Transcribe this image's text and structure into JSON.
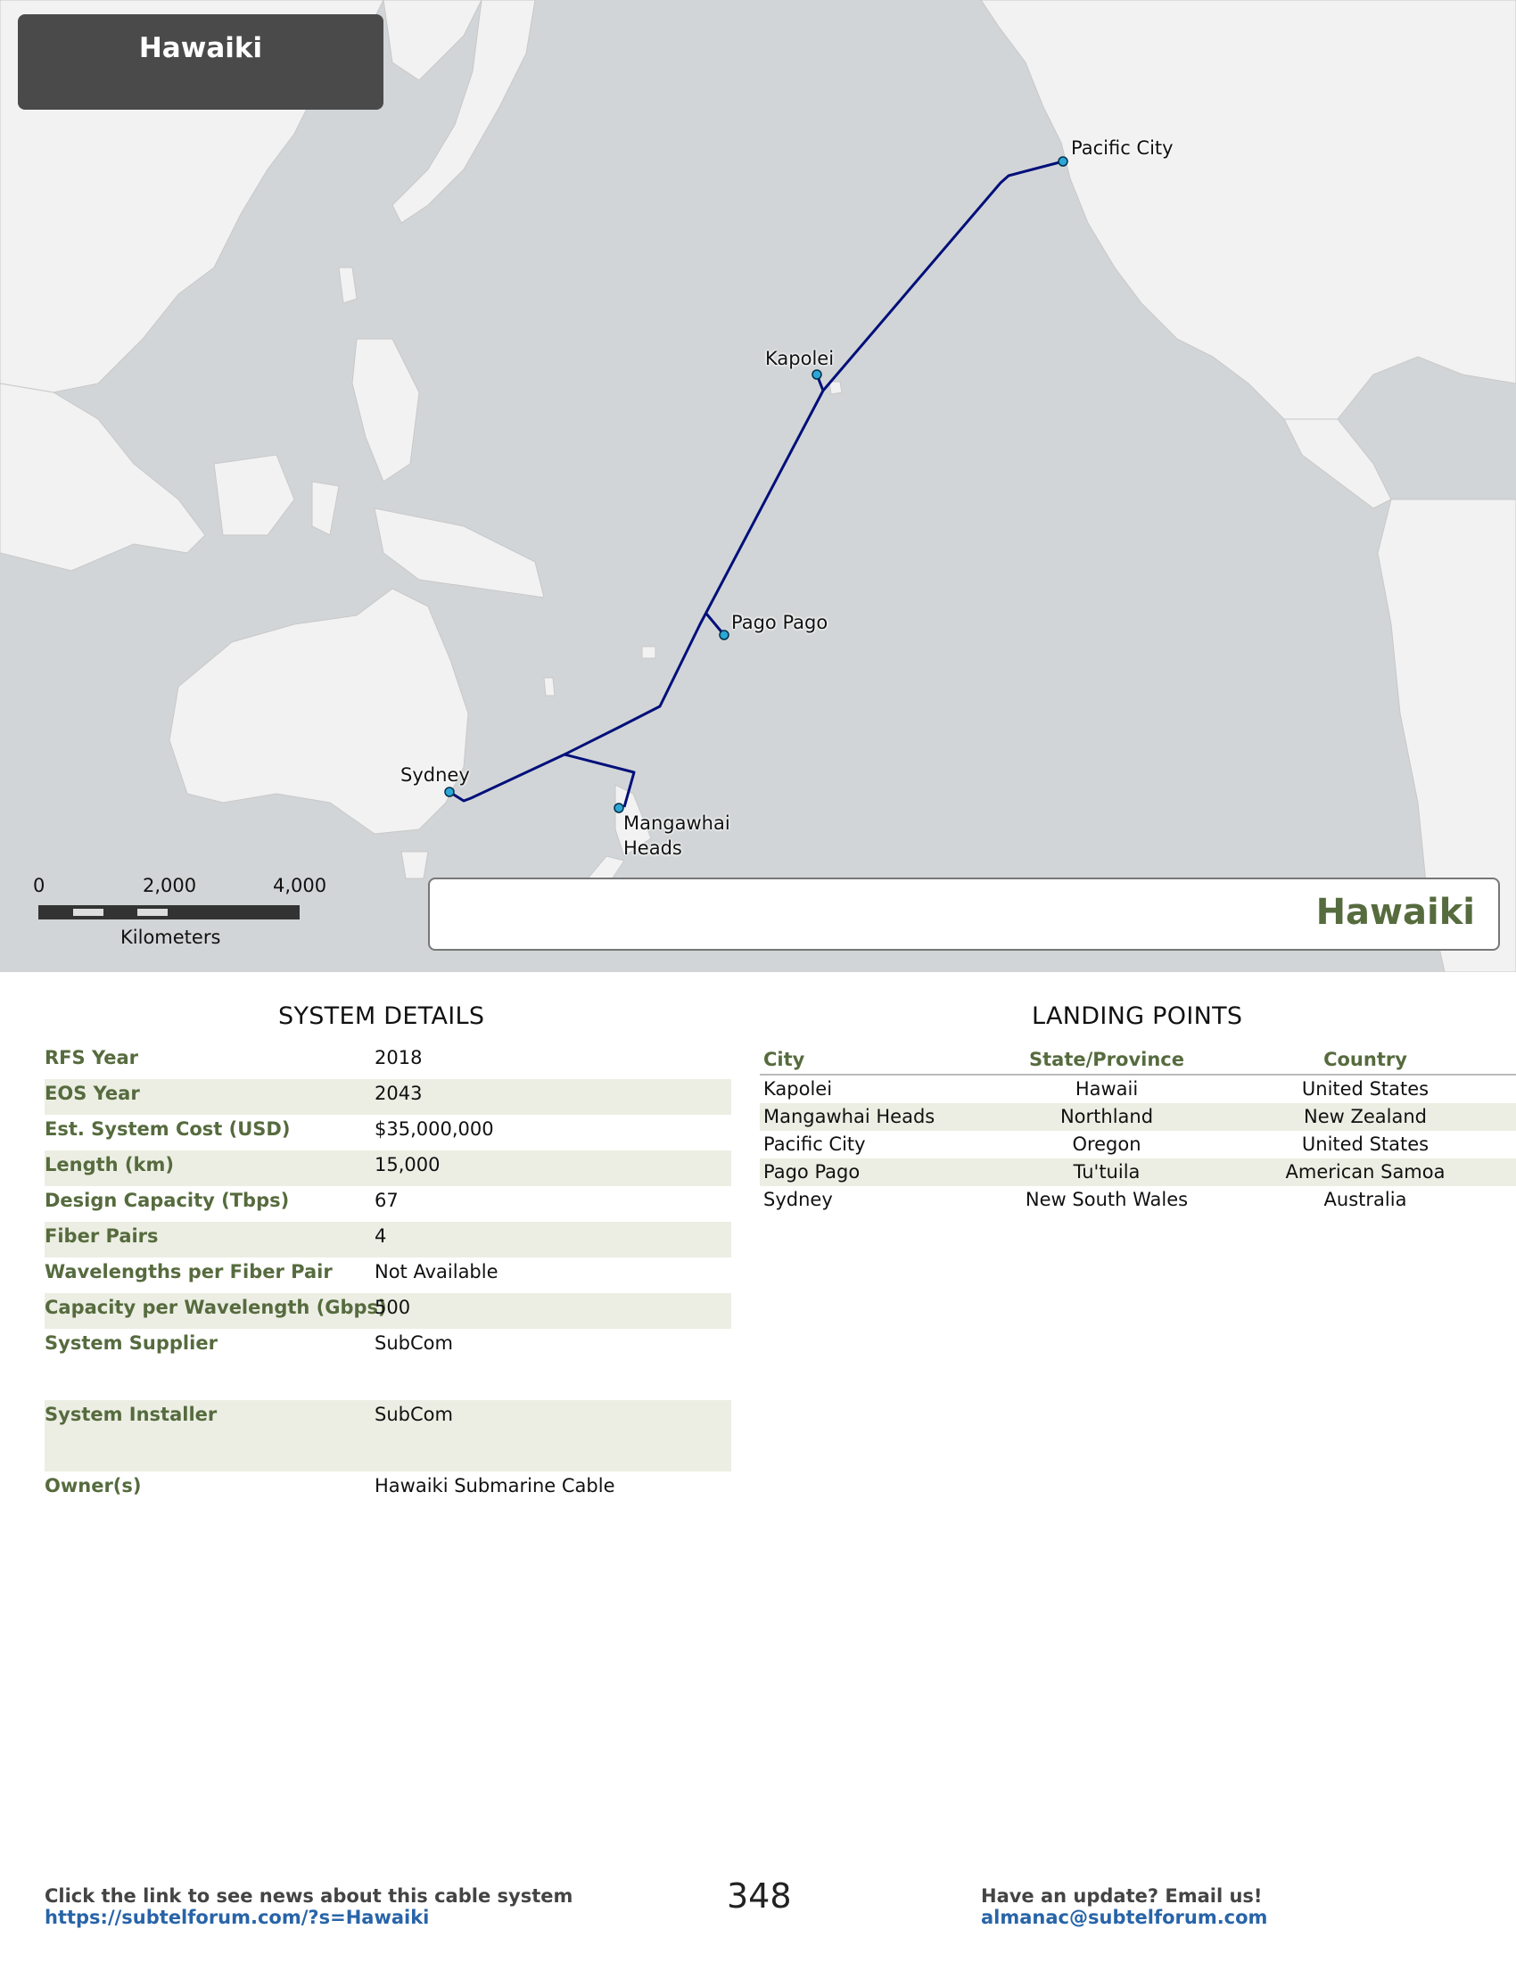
{
  "map": {
    "title_box": "Hawaiki",
    "name_box": "Hawaiki",
    "colors": {
      "ocean": "#d2d5d7",
      "land": "#f2f2f2",
      "cable": "#000f7a",
      "landing_point": "#2ca7d6",
      "accent_green": "#566b3e"
    },
    "landing_labels": {
      "pacific_city": "Pacific City",
      "kapolei": "Kapolei",
      "pago_pago": "Pago Pago",
      "sydney": "Sydney",
      "mangawhai_1": "Mangawhai",
      "mangawhai_2": "Heads"
    },
    "scale_bar": {
      "tick_0": "0",
      "tick_1": "2,000",
      "tick_2": "4,000",
      "unit": "Kilometers"
    }
  },
  "system_details": {
    "heading": "SYSTEM DETAILS",
    "rows": [
      {
        "label": "RFS Year",
        "value": "2018"
      },
      {
        "label": "EOS Year",
        "value": "2043"
      },
      {
        "label": "Est. System Cost (USD)",
        "value": "$35,000,000"
      },
      {
        "label": "Length (km)",
        "value": "15,000"
      },
      {
        "label": "Design Capacity (Tbps)",
        "value": "67"
      },
      {
        "label": "Fiber Pairs",
        "value": "4"
      },
      {
        "label": "Wavelengths per Fiber Pair",
        "value": "Not Available"
      },
      {
        "label": "Capacity per Wavelength (Gbps)",
        "value": "500"
      },
      {
        "label": "System Supplier",
        "value": "SubCom"
      },
      {
        "label": "System Installer",
        "value": "SubCom"
      },
      {
        "label": "Owner(s)",
        "value": "Hawaiki Submarine Cable"
      }
    ]
  },
  "landing_points": {
    "heading": "LANDING POINTS",
    "columns": [
      "City",
      "State/Province",
      "Country"
    ],
    "rows": [
      [
        "Kapolei",
        "Hawaii",
        "United States"
      ],
      [
        "Mangawhai Heads",
        "Northland",
        "New Zealand"
      ],
      [
        "Pacific City",
        "Oregon",
        "United States"
      ],
      [
        "Pago Pago",
        "Tu'tuila",
        "American Samoa"
      ],
      [
        "Sydney",
        "New South Wales",
        "Australia"
      ]
    ]
  },
  "footer": {
    "left_text": "Click the link to see news about this cable system",
    "left_link": "https://subtelforum.com/?s=Hawaiki",
    "page_number": "348",
    "right_text": "Have an update? Email us!",
    "right_link": "almanac@subtelforum.com"
  }
}
